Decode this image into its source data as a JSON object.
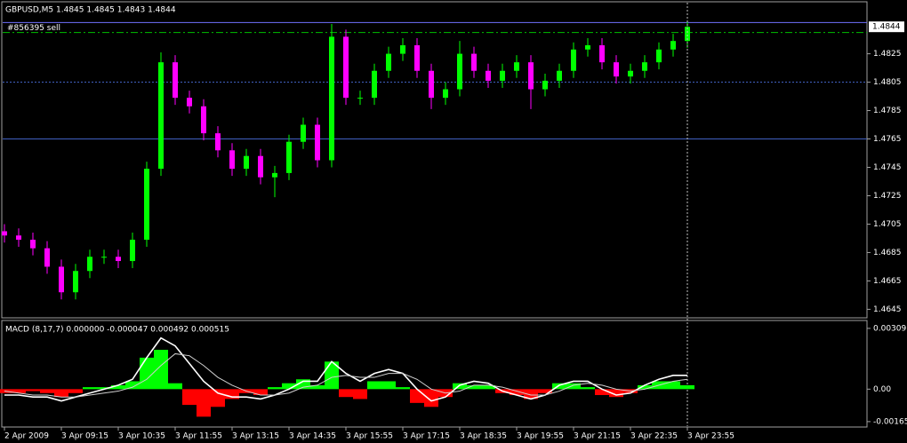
{
  "chart_data": [
    {
      "type": "candlestick",
      "title": "GBPUSD,M5  1.4845 1.4845 1.4843 1.4844",
      "categories": [
        "2 Apr 2009",
        null,
        null,
        null,
        "3 Apr 09:15",
        null,
        null,
        null,
        "3 Apr 10:35",
        null,
        null,
        null,
        "3 Apr 11:55",
        null,
        null,
        null,
        "3 Apr 13:15",
        null,
        null,
        null,
        "3 Apr 14:35",
        null,
        null,
        null,
        "3 Apr 15:55",
        null,
        null,
        null,
        "3 Apr 17:15",
        null,
        null,
        null,
        "3 Apr 18:35",
        null,
        null,
        null,
        "3 Apr 19:55",
        null,
        null,
        null,
        "3 Apr 21:15",
        null,
        null,
        null,
        "3 Apr 22:35",
        null,
        null,
        null,
        "3 Apr 23:55"
      ],
      "open": [
        1.47,
        1.4697,
        1.4694,
        1.4688,
        1.4675,
        1.4657,
        1.4672,
        1.4682,
        1.4682,
        1.4679,
        1.4694,
        1.4744,
        1.4819,
        1.4794,
        1.4788,
        1.4769,
        1.4757,
        1.4744,
        1.4753,
        1.4738,
        1.4741,
        1.4763,
        1.4775,
        1.475,
        1.4837,
        1.4794,
        1.4794,
        1.4813,
        1.4825,
        1.4831,
        1.4813,
        1.4794,
        1.48,
        1.4825,
        1.4813,
        1.4806,
        1.4813,
        1.4819,
        1.48,
        1.4806,
        1.4813,
        1.4828,
        1.4831,
        1.4819,
        1.4809,
        1.4813,
        1.4819,
        1.4828,
        1.4834
      ],
      "high": [
        1.4705,
        1.4702,
        1.4699,
        1.4693,
        1.468,
        1.4677,
        1.4687,
        1.4687,
        1.4687,
        1.4699,
        1.4749,
        1.4826,
        1.4824,
        1.4799,
        1.4793,
        1.4774,
        1.4762,
        1.4758,
        1.4758,
        1.4746,
        1.4768,
        1.478,
        1.478,
        1.4846,
        1.4842,
        1.4799,
        1.4818,
        1.483,
        1.4836,
        1.4836,
        1.4818,
        1.4805,
        1.4834,
        1.483,
        1.4818,
        1.4818,
        1.4824,
        1.4824,
        1.4811,
        1.4818,
        1.4833,
        1.4836,
        1.4836,
        1.4824,
        1.4818,
        1.4824,
        1.4833,
        1.4839,
        1.4848
      ],
      "low": [
        1.4692,
        1.4689,
        1.4683,
        1.467,
        1.4652,
        1.4652,
        1.4667,
        1.4677,
        1.4674,
        1.4674,
        1.4689,
        1.4739,
        1.4789,
        1.4783,
        1.4764,
        1.4752,
        1.4739,
        1.4739,
        1.4733,
        1.4724,
        1.4736,
        1.4758,
        1.4745,
        1.4745,
        1.4789,
        1.4789,
        1.4789,
        1.4808,
        1.482,
        1.4808,
        1.4786,
        1.4789,
        1.4795,
        1.4808,
        1.4801,
        1.4801,
        1.4808,
        1.4786,
        1.4795,
        1.4801,
        1.4808,
        1.4823,
        1.4814,
        1.4804,
        1.4804,
        1.4808,
        1.4814,
        1.4823,
        1.4829
      ],
      "close": [
        1.4697,
        1.4694,
        1.4688,
        1.4675,
        1.4657,
        1.4672,
        1.4682,
        1.4682,
        1.4679,
        1.4694,
        1.4744,
        1.4819,
        1.4794,
        1.4788,
        1.4769,
        1.4757,
        1.4744,
        1.4753,
        1.4738,
        1.4741,
        1.4763,
        1.4775,
        1.475,
        1.4837,
        1.4794,
        1.4794,
        1.4813,
        1.4825,
        1.4831,
        1.4813,
        1.4794,
        1.48,
        1.4825,
        1.4813,
        1.4806,
        1.4813,
        1.4819,
        1.48,
        1.4806,
        1.4813,
        1.4828,
        1.4831,
        1.4819,
        1.4809,
        1.4813,
        1.4819,
        1.4828,
        1.4834,
        1.4844
      ],
      "up_color": "#00ff00",
      "down_color": "#ff00ff",
      "ylim": [
        1.4639,
        1.4861
      ],
      "yticks": [
        1.4825,
        1.4805,
        1.4785,
        1.4765,
        1.4745,
        1.4725,
        1.4705,
        1.4685,
        1.4665,
        1.4645
      ],
      "last_price": 1.4844,
      "order": {
        "label": "#856395 sell",
        "value": 1.4847,
        "color": "#7070ff"
      },
      "levels": [
        {
          "value": 1.484,
          "color": "#00c000",
          "style": "dashdot"
        },
        {
          "value": 1.4805,
          "color": "#4060c0",
          "style": "dotted"
        },
        {
          "value": 1.4765,
          "color": "#4060c0",
          "style": "solid"
        }
      ]
    },
    {
      "type": "macd",
      "title": "MACD (8,17,7) 0.000000 -0.000047 0.000492 0.000515",
      "values": [
        -0.0002,
        -0.0002,
        -0.0001,
        -0.0002,
        -0.0004,
        -0.0002,
        0.0001,
        0.0001,
        0.0002,
        0.0004,
        0.0016,
        0.002,
        0.0003,
        -0.0008,
        -0.0014,
        -0.0009,
        -0.0005,
        -0.0002,
        -0.0003,
        0.0001,
        0.0003,
        0.0005,
        0.0002,
        0.0014,
        -0.0004,
        -0.0005,
        0.0004,
        0.0004,
        0.0001,
        -0.0007,
        -0.0009,
        -0.0004,
        0.0003,
        0.0002,
        0.0002,
        -0.0002,
        -0.0003,
        -0.0005,
        -0.0002,
        0.0003,
        0.0003,
        0.0001,
        -0.0003,
        -0.0004,
        -0.0002,
        0.0002,
        0.0004,
        0.0004,
        0.0002
      ],
      "up_color": "#00ff00",
      "down_color": "#ff0000",
      "series": [
        {
          "color": "#ffffff",
          "values": [
            -0.0003,
            -0.0003,
            -0.0004,
            -0.0004,
            -0.0006,
            -0.0004,
            -0.0002,
            0.0,
            0.0002,
            0.0005,
            0.0016,
            0.0026,
            0.0022,
            0.0013,
            0.0004,
            -0.0002,
            -0.0004,
            -0.0004,
            -0.0005,
            -0.0003,
            0.0,
            0.0004,
            0.0004,
            0.0014,
            0.0008,
            0.0004,
            0.0008,
            0.001,
            0.0008,
            0.0,
            -0.0006,
            -0.0004,
            0.0002,
            0.0004,
            0.0003,
            -0.0001,
            -0.0003,
            -0.0005,
            -0.0003,
            0.0002,
            0.0004,
            0.0004,
            0.0,
            -0.0003,
            -0.0002,
            0.0002,
            0.0005,
            0.0007,
            0.0007
          ]
        },
        {
          "color": "#d0d0d0",
          "values": [
            -0.0001,
            -0.0002,
            -0.0003,
            -0.0003,
            -0.0004,
            -0.0004,
            -0.0003,
            -0.0002,
            -0.0001,
            0.0001,
            0.0005,
            0.0012,
            0.0018,
            0.0017,
            0.0012,
            0.0006,
            0.0002,
            -0.0001,
            -0.0003,
            -0.0003,
            -0.0002,
            0.0001,
            0.0002,
            0.0006,
            0.0007,
            0.0006,
            0.0006,
            0.0008,
            0.0008,
            0.0005,
            0.0,
            -0.0002,
            -0.0001,
            0.0002,
            0.0002,
            0.0001,
            -0.0001,
            -0.0003,
            -0.0003,
            -0.0001,
            0.0002,
            0.0003,
            0.0002,
            0.0,
            -0.0001,
            0.0,
            0.0002,
            0.0004,
            0.0005
          ]
        }
      ],
      "ylim": [
        -0.00188,
        0.0034
      ],
      "yticks": [
        0.00309,
        {
          "value": 0,
          "label": "0.00"
        },
        -0.00165
      ]
    }
  ]
}
